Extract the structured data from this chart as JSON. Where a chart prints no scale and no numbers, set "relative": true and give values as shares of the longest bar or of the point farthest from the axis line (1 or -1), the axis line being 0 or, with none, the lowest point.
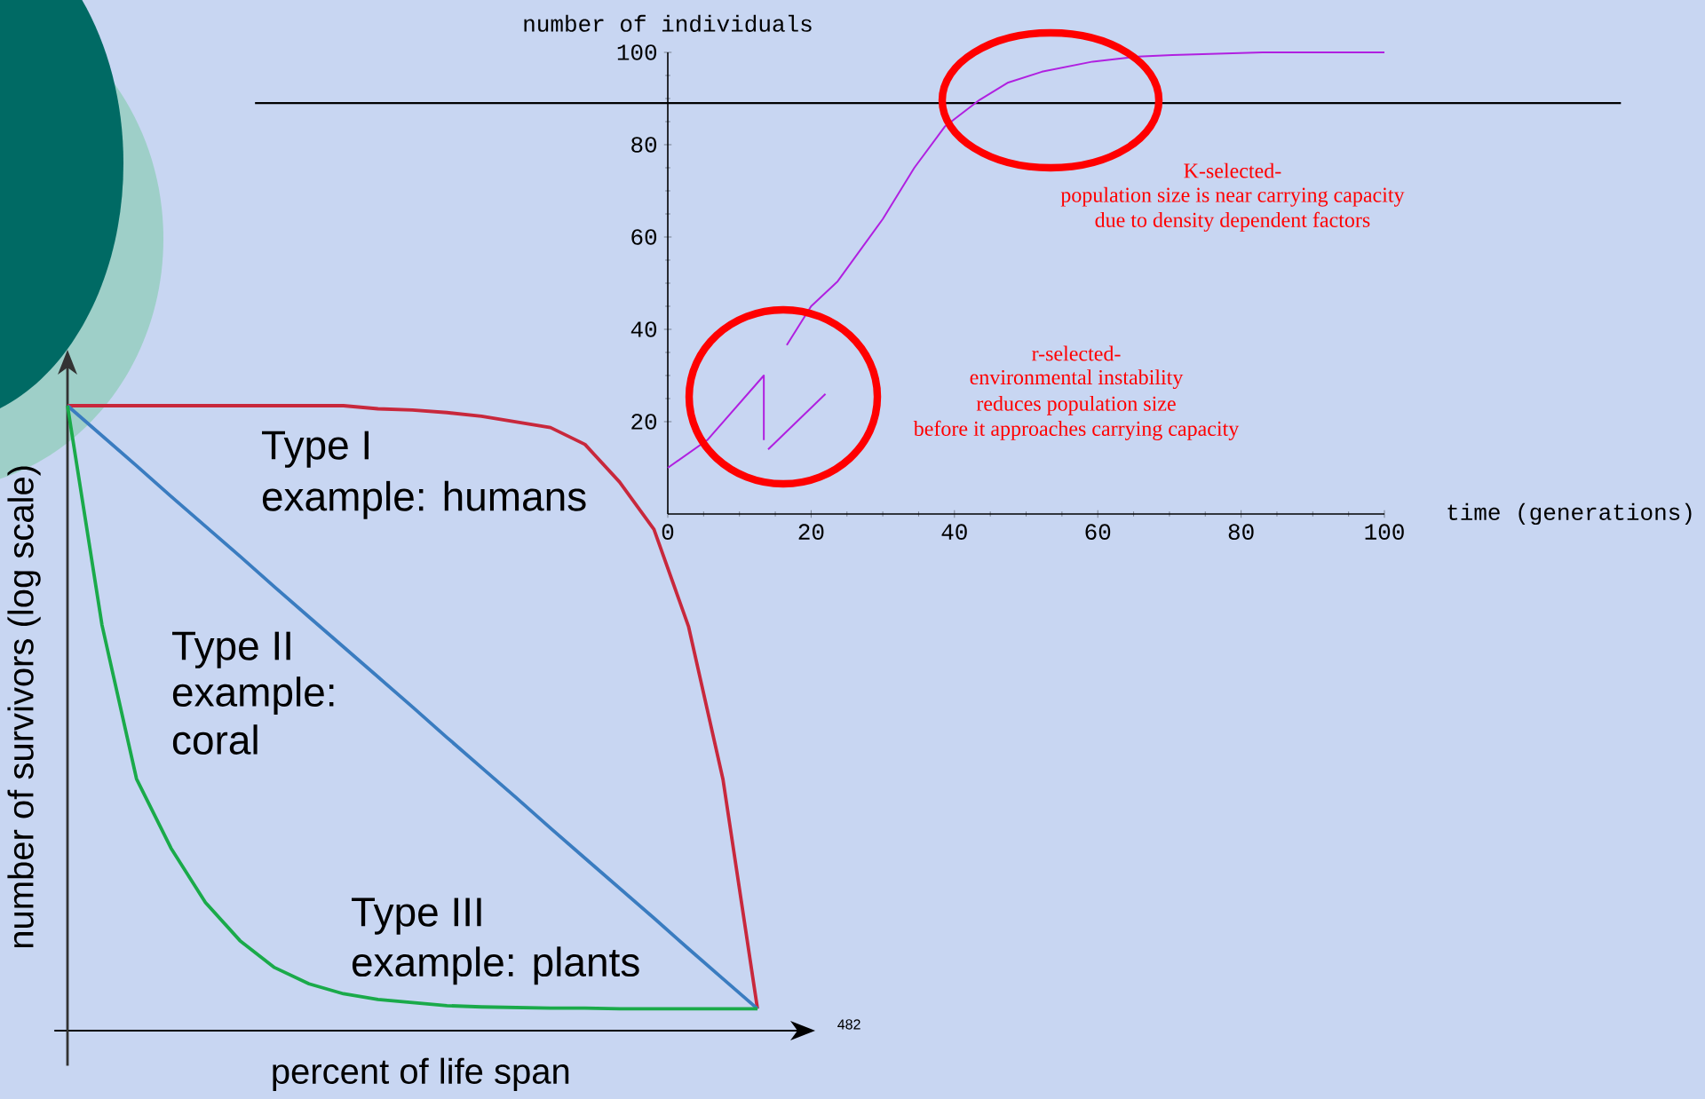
{
  "chart_data": [
    {
      "type": "line",
      "xlabel": "time (generations)",
      "ylabel": "number of individuals",
      "xlim": [
        0,
        100
      ],
      "ylim": [
        0,
        100
      ],
      "xticks": [
        0,
        20,
        40,
        60,
        80,
        100
      ],
      "yticks": [
        20,
        40,
        60,
        80,
        100
      ],
      "ref_lines": [
        {
          "axis": "y",
          "value": 89,
          "color": "#000000"
        }
      ],
      "annotations": [
        "K-selected-",
        "population size is near carrying capacity",
        "due to density dependent factors",
        "r-selected-",
        "environmental instability",
        "reduces population size",
        "before it approaches carrying capacity"
      ],
      "series": [
        {
          "color": "#b020e0",
          "x": [
            0,
            5.5,
            13.4,
            13.4
          ],
          "values": [
            10,
            16,
            30,
            16
          ]
        },
        {
          "color": "#b020e0",
          "x": [
            14,
            22
          ],
          "values": [
            14,
            26
          ]
        },
        {
          "color": "#b020e0",
          "x": [
            16.6,
            20,
            23.7,
            30,
            34.4,
            38.7,
            43.5,
            47.4,
            52.2,
            59.3,
            65.6,
            70.4,
            83,
            100
          ],
          "values": [
            36.6,
            45,
            50.4,
            63.9,
            75,
            84,
            89.7,
            93.4,
            95.8,
            98,
            99.1,
            99.4,
            100,
            100
          ]
        }
      ]
    },
    {
      "type": "line",
      "relative": true,
      "xlabel": "percent of life span",
      "ylabel": "number of survivors (log scale)",
      "categories": [
        null,
        null,
        null,
        null,
        null,
        null,
        null,
        null,
        null,
        null,
        null,
        null,
        null,
        null,
        null,
        null,
        null,
        null,
        null,
        null,
        null
      ],
      "annotations": [
        "example: humans",
        "example: coral",
        "example: plants",
        "482"
      ],
      "series": [
        {
          "name": "Type I",
          "color": "#c8283c",
          "values": [
            1,
            1,
            1,
            1,
            1,
            1,
            1,
            1,
            1,
            0.995,
            0.993,
            0.989,
            0.983,
            0.974,
            0.965,
            0.938,
            0.878,
            0.802,
            0.647,
            0.402,
            0.035
          ]
        },
        {
          "name": "Type II",
          "color": "#3a7cc0",
          "values": [
            1,
            0.952,
            0.904,
            0.855,
            0.807,
            0.759,
            0.71,
            0.662,
            0.614,
            0.566,
            0.518,
            0.469,
            0.421,
            0.373,
            0.324,
            0.276,
            0.228,
            0.18,
            0.131,
            0.083,
            0.035
          ]
        },
        {
          "name": "Type III",
          "color": "#1aaa4a",
          "values": [
            1,
            0.649,
            0.403,
            0.292,
            0.205,
            0.144,
            0.101,
            0.075,
            0.059,
            0.05,
            0.045,
            0.04,
            0.038,
            0.037,
            0.036,
            0.036,
            0.035,
            0.035,
            0.035,
            0.035,
            0.035
          ]
        }
      ]
    }
  ]
}
